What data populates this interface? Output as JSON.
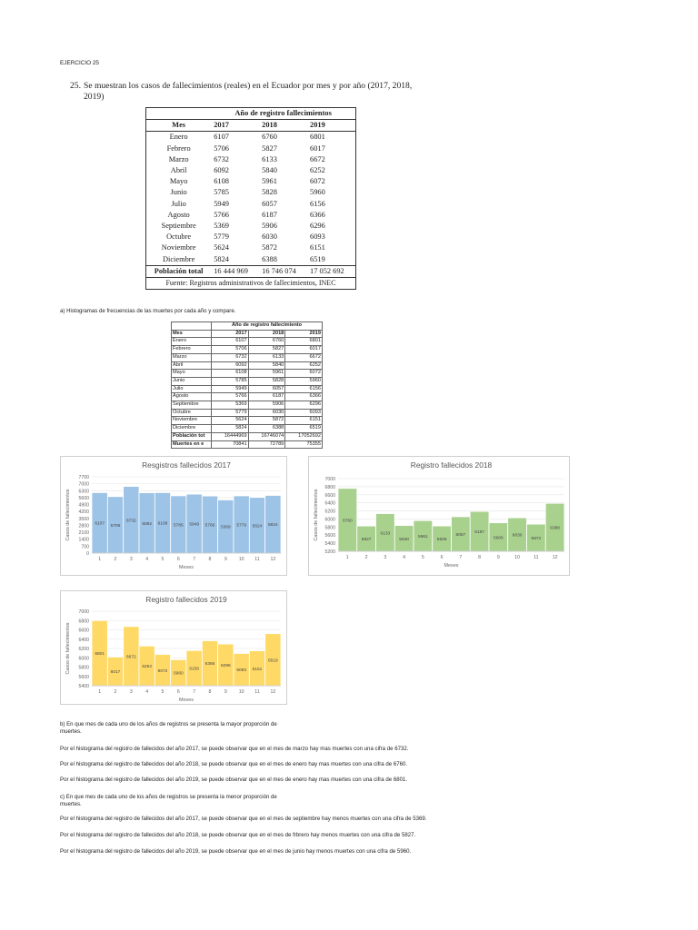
{
  "header": {
    "exercise_label": "EJERCICIO 25"
  },
  "problem": {
    "number": "25.",
    "line1": "Se muestran los casos de fallecimientos (reales) en el Ecuador por mes y por año (2017, 2018,",
    "line2": "2019)"
  },
  "book_table": {
    "group_header": "Año de registro fallecimientos",
    "col_mes": "Mes",
    "years": [
      "2017",
      "2018",
      "2019"
    ],
    "rows": [
      [
        "Enero",
        "6107",
        "6760",
        "6801"
      ],
      [
        "Febrero",
        "5706",
        "5827",
        "6017"
      ],
      [
        "Marzo",
        "6732",
        "6133",
        "6672"
      ],
      [
        "Abril",
        "6092",
        "5840",
        "6252"
      ],
      [
        "Mayo",
        "6108",
        "5961",
        "6072"
      ],
      [
        "Junio",
        "5785",
        "5828",
        "5960"
      ],
      [
        "Julio",
        "5949",
        "6057",
        "6156"
      ],
      [
        "Agosto",
        "5766",
        "6187",
        "6366"
      ],
      [
        "Septiembre",
        "5369",
        "5906",
        "6296"
      ],
      [
        "Octubre",
        "5779",
        "6030",
        "6093"
      ],
      [
        "Noviembre",
        "5624",
        "5872",
        "6151"
      ],
      [
        "Diciembre",
        "5824",
        "6388",
        "6519"
      ]
    ],
    "total_row": [
      "Población total",
      "16 444 969",
      "16 746 074",
      "17 052 692"
    ],
    "source": "Fuente: Registros administrativos de fallecimientos, INEC"
  },
  "question_a": "a) Histogramas de frecuencias de las muertes por cada año y compare.",
  "excel_table": {
    "group_header": "Año de registro fallecimiento",
    "col_mes": "Mes",
    "years": [
      "2017",
      "2018",
      "2019"
    ],
    "rows": [
      [
        "Enero",
        "6107",
        "6760",
        "6801"
      ],
      [
        "Febrero",
        "5706",
        "5827",
        "6017"
      ],
      [
        "Marzo",
        "6732",
        "6133",
        "6672"
      ],
      [
        "Abril",
        "6092",
        "5840",
        "6252"
      ],
      [
        "Mayo",
        "6108",
        "5961",
        "6072"
      ],
      [
        "Junio",
        "5785",
        "5828",
        "5960"
      ],
      [
        "Julio",
        "5949",
        "6057",
        "6156"
      ],
      [
        "Agosto",
        "5766",
        "6187",
        "6366"
      ],
      [
        "Septiembre",
        "5369",
        "5906",
        "6296"
      ],
      [
        "Octubre",
        "5779",
        "6030",
        "6093"
      ],
      [
        "Noviembre",
        "5624",
        "5872",
        "6151"
      ],
      [
        "Diciembre",
        "5824",
        "6388",
        "6519"
      ],
      [
        "Población tot",
        "16444969",
        "16746074",
        "17052692"
      ],
      [
        "Muertes en e",
        "70841",
        "72789",
        "75355"
      ]
    ]
  },
  "chart_data": [
    {
      "type": "bar",
      "title": "Resgistros fallecidos 2017",
      "xlabel": "Meses",
      "ylabel": "Casos de fallecimientos",
      "categories": [
        "1",
        "2",
        "3",
        "4",
        "5",
        "6",
        "7",
        "8",
        "9",
        "10",
        "11",
        "12"
      ],
      "values": [
        6107,
        5706,
        6732,
        6092,
        6108,
        5785,
        5949,
        5766,
        5369,
        5779,
        5624,
        5824
      ],
      "yticks": [
        "0",
        "700",
        "1400",
        "2100",
        "2800",
        "3500",
        "4200",
        "4900",
        "5600",
        "6300",
        "7000",
        "7700"
      ],
      "ylim": [
        0,
        7700
      ],
      "color": "#9dc3e6",
      "grid": true
    },
    {
      "type": "bar",
      "title": "Registro fallecidos 2018",
      "xlabel": "Meses",
      "ylabel": "Casos de fallecimientos",
      "categories": [
        "1",
        "2",
        "3",
        "4",
        "5",
        "6",
        "7",
        "8",
        "9",
        "10",
        "11",
        "12"
      ],
      "values": [
        6760,
        5827,
        6133,
        5840,
        5961,
        5828,
        6057,
        6187,
        5906,
        6030,
        5872,
        6388
      ],
      "yticks": [
        "5200",
        "5400",
        "5600",
        "5800",
        "6000",
        "6200",
        "6400",
        "6600",
        "6800",
        "7000"
      ],
      "ylim": [
        5200,
        7000
      ],
      "color": "#a9d18e",
      "grid": true
    },
    {
      "type": "bar",
      "title": "Registro fallecidos 2019",
      "xlabel": "Meses",
      "ylabel": "Casos de fallecimientos",
      "categories": [
        "1",
        "2",
        "3",
        "4",
        "5",
        "6",
        "7",
        "8",
        "9",
        "10",
        "11",
        "12"
      ],
      "values": [
        6801,
        6017,
        6672,
        6252,
        6072,
        5960,
        6156,
        6366,
        6296,
        6093,
        6151,
        6519
      ],
      "yticks": [
        "5400",
        "5600",
        "5800",
        "6000",
        "6200",
        "6400",
        "6600",
        "6800",
        "7000"
      ],
      "ylim": [
        5400,
        7000
      ],
      "color": "#ffd966",
      "grid": true
    }
  ],
  "question_b": {
    "line1": "b) En que mes de cada uno de los años de registros se presenta la mayor proporción de",
    "line2": "muertes.",
    "answers": [
      "Por el histograma del registro de fallecidos del año 2017, se puede observar que en el mes de marzo hay mas muertes con una cifra de 6732.",
      "Por el histograma del registro de fallecidos del año 2018, se puede observar que en el mes de enero hay mas muertes con una cifra de 6760.",
      "Por el histograma del registro de fallecidos del año 2019, se puede observar que en el mes de enero hay mas muertes con una cifra de 6801."
    ]
  },
  "question_c": {
    "line1": "c) En que mes de cada uno de los años de registros se presenta la menor proporción de",
    "line2": "muertes.",
    "answers": [
      "Por el histograma del registro de fallecidos del año 2017, se puede observar que en el mes de septiembre hay menos muertes con una cifra de 5369.",
      "Por el histograma del registro de fallecidos del año 2018, se puede observar que en el mes de frbrero hay menos muertes con una cifra de 5827.",
      "Por el histograma del registro de fallecidos del año 2019, se puede observar que en el mes de junio hay menos muertes con una cifra de 5960."
    ]
  }
}
